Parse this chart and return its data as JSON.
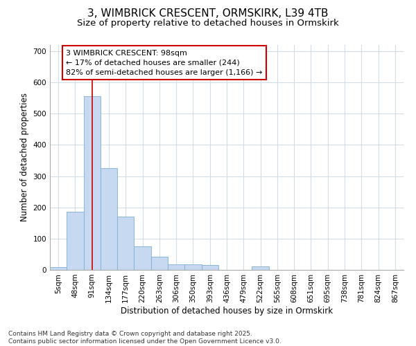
{
  "title_line1": "3, WIMBRICK CRESCENT, ORMSKIRK, L39 4TB",
  "title_line2": "Size of property relative to detached houses in Ormskirk",
  "xlabel": "Distribution of detached houses by size in Ormskirk",
  "ylabel": "Number of detached properties",
  "bar_color": "#c6d9f0",
  "bar_edge_color": "#7bafd4",
  "categories": [
    "5sqm",
    "48sqm",
    "91sqm",
    "134sqm",
    "177sqm",
    "220sqm",
    "263sqm",
    "306sqm",
    "350sqm",
    "393sqm",
    "436sqm",
    "479sqm",
    "522sqm",
    "565sqm",
    "608sqm",
    "651sqm",
    "695sqm",
    "738sqm",
    "781sqm",
    "824sqm",
    "867sqm"
  ],
  "values": [
    8,
    185,
    555,
    325,
    170,
    75,
    42,
    18,
    18,
    15,
    0,
    0,
    12,
    0,
    0,
    0,
    0,
    0,
    0,
    0,
    0
  ],
  "ylim": [
    0,
    720
  ],
  "yticks": [
    0,
    100,
    200,
    300,
    400,
    500,
    600,
    700
  ],
  "vline_x": 2,
  "vline_color": "#cc0000",
  "annotation_text": "3 WIMBRICK CRESCENT: 98sqm\n← 17% of detached houses are smaller (244)\n82% of semi-detached houses are larger (1,166) →",
  "background_color": "#ffffff",
  "grid_color": "#d0dce8",
  "footnote": "Contains HM Land Registry data © Crown copyright and database right 2025.\nContains public sector information licensed under the Open Government Licence v3.0.",
  "title_fontsize": 11,
  "subtitle_fontsize": 9.5,
  "xlabel_fontsize": 8.5,
  "ylabel_fontsize": 8.5,
  "tick_fontsize": 7.5,
  "annot_fontsize": 8,
  "footnote_fontsize": 6.5
}
